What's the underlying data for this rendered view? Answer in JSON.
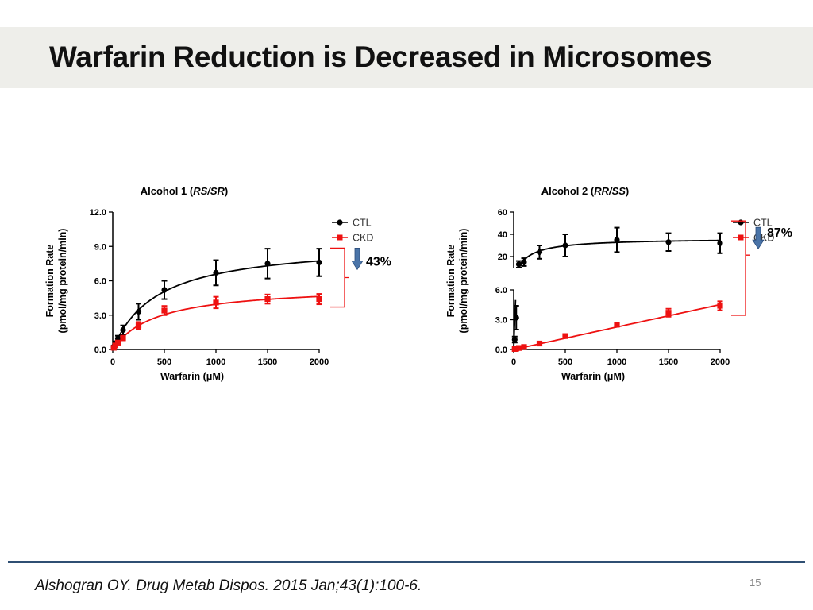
{
  "slide": {
    "title": "Warfarin Reduction is Decreased in Microsomes",
    "citation": "Alshogran OY. Drug Metab Dispos. 2015 Jan;43(1):100-6.",
    "page_number": "15"
  },
  "colors": {
    "ctl": "#000000",
    "ckd": "#ee1111",
    "arrow": "#4a74a8",
    "header_bg": "#eeeeea",
    "footer_line": "#2f4f73"
  },
  "chart_data": [
    {
      "type": "scatter",
      "title_prefix": "Alcohol 1 (",
      "title_italic": "RS/SR",
      "title_suffix": ")",
      "xlabel": "Warfarin (μM)",
      "ylabel_line1": "Formation Rate",
      "ylabel_line2": "(pmol/mg protein/min)",
      "xlim": [
        0,
        2000
      ],
      "ylim": [
        0,
        12
      ],
      "xticks": [
        "0",
        "500",
        "1000",
        "1500",
        "2000"
      ],
      "yticks": [
        "0.0",
        "3.0",
        "6.0",
        "9.0",
        "12.0"
      ],
      "legend": [
        "CTL",
        "CKD"
      ],
      "legend_position": "top-right",
      "annotation": "43%",
      "series": [
        {
          "name": "CTL",
          "x": [
            10,
            25,
            50,
            100,
            250,
            500,
            1000,
            1500,
            2000
          ],
          "y": [
            0.25,
            0.55,
            0.95,
            1.7,
            3.3,
            5.2,
            6.7,
            7.5,
            7.6
          ],
          "err": [
            0.1,
            0.15,
            0.25,
            0.4,
            0.7,
            0.8,
            1.1,
            1.3,
            1.2
          ],
          "fit": {
            "model": "michaelis-menten",
            "vmax": 9.4,
            "km": 430
          }
        },
        {
          "name": "CKD",
          "x": [
            10,
            25,
            50,
            100,
            250,
            500,
            1000,
            1500,
            2000
          ],
          "y": [
            0.15,
            0.35,
            0.6,
            1.0,
            2.1,
            3.4,
            4.1,
            4.4,
            4.4
          ],
          "err": [
            0.05,
            0.1,
            0.1,
            0.2,
            0.3,
            0.4,
            0.5,
            0.4,
            0.45
          ],
          "fit": {
            "model": "michaelis-menten",
            "vmax": 5.6,
            "km": 420
          }
        }
      ]
    },
    {
      "type": "scatter",
      "title_prefix": "Alcohol 2 (",
      "title_italic": "RR/SS",
      "title_suffix": ")",
      "xlabel": "Warfarin (μM)",
      "ylabel_line1": "Formation Rate",
      "ylabel_line2": "(pmol/mg protein/min)",
      "xlim": [
        0,
        2000
      ],
      "ylim_lower": [
        0,
        6
      ],
      "ylim_upper": [
        10,
        60
      ],
      "axis_break": true,
      "xticks": [
        "0",
        "500",
        "1000",
        "1500",
        "2000"
      ],
      "yticks_lower": [
        "0.0",
        "3.0",
        "6.0"
      ],
      "yticks_upper": [
        "20",
        "40",
        "60"
      ],
      "legend": [
        "CTL",
        "CKD"
      ],
      "legend_position": "top-right",
      "annotation": "87%",
      "series": [
        {
          "name": "CTL",
          "x": [
            10,
            25,
            50,
            100,
            250,
            500,
            1000,
            1500,
            2000
          ],
          "y": [
            1.0,
            3.2,
            13.0,
            15.0,
            24.0,
            30.0,
            35.0,
            33.0,
            32.0
          ],
          "err": [
            0.3,
            1.2,
            3.0,
            3.5,
            6.0,
            10.0,
            11.0,
            8.0,
            9.0
          ],
          "fit": {
            "model": "michaelis-menten",
            "vmax": 36.5,
            "km": 115
          }
        },
        {
          "name": "CKD",
          "x": [
            10,
            25,
            50,
            100,
            250,
            500,
            1000,
            1500,
            2000
          ],
          "y": [
            0.05,
            0.08,
            0.15,
            0.25,
            0.6,
            1.35,
            2.5,
            3.7,
            4.4
          ],
          "err": [
            0.02,
            0.02,
            0.05,
            0.05,
            0.1,
            0.15,
            0.2,
            0.4,
            0.45
          ],
          "fit": {
            "model": "linear",
            "slope": 0.00226,
            "intercept": 0.0
          }
        }
      ]
    }
  ]
}
